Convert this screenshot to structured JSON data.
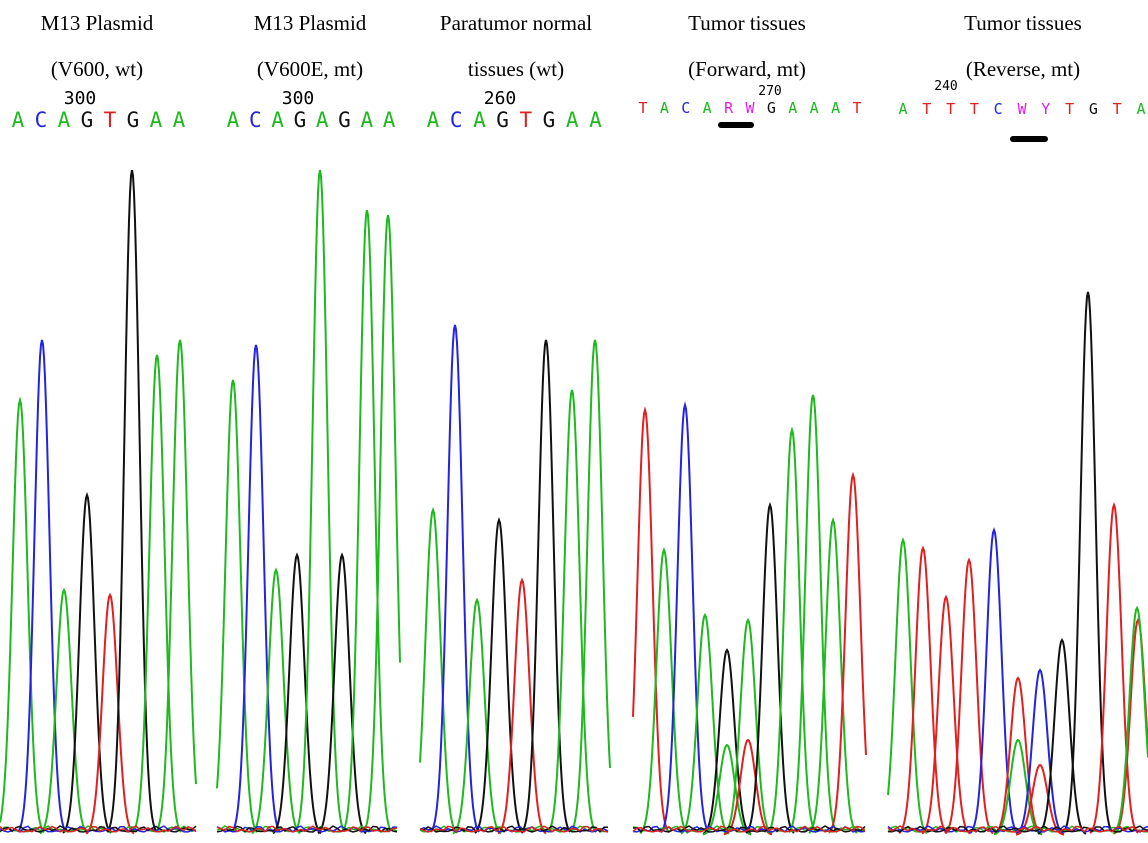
{
  "panels": [
    {
      "title": [
        "M13 Plasmid",
        "(V600, wt)"
      ],
      "position": "300",
      "bases": [
        "A",
        "C",
        "A",
        "G",
        "T",
        "G",
        "A",
        "A"
      ]
    },
    {
      "title": [
        "M13 Plasmid",
        "(V600E, mt)"
      ],
      "position": "300",
      "bases": [
        "A",
        "C",
        "A",
        "G",
        "A",
        "G",
        "A",
        "A"
      ]
    },
    {
      "title": [
        "Paratumor normal",
        "tissues (wt)"
      ],
      "position": "260",
      "bases": [
        "A",
        "C",
        "A",
        "G",
        "T",
        "G",
        "A",
        "A"
      ]
    },
    {
      "title": [
        "Tumor tissues",
        "(Forward, mt)"
      ],
      "position": "270",
      "bases": [
        "T",
        "A",
        "C",
        "A",
        "R",
        "W",
        "G",
        "A",
        "A",
        "A",
        "T"
      ]
    },
    {
      "title": [
        "Tumor tissues",
        "(Reverse, mt)"
      ],
      "position": "240",
      "bases": [
        "A",
        "T",
        "T",
        "T",
        "C",
        "W",
        "Y",
        "T",
        "G",
        "T",
        "A"
      ]
    }
  ]
}
